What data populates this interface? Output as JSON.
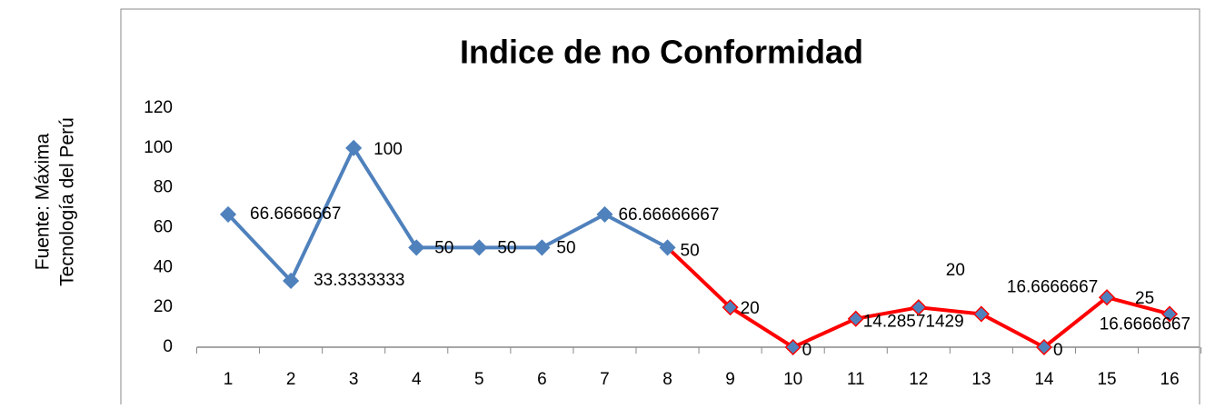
{
  "chart_data": {
    "type": "line",
    "title": "Indice de no Conformidad",
    "source": [
      "Fuente: Máxima",
      "Tecnología del Perú"
    ],
    "categories": [
      "1",
      "2",
      "3",
      "4",
      "5",
      "6",
      "7",
      "8",
      "9",
      "10",
      "11",
      "12",
      "13",
      "14",
      "15",
      "16"
    ],
    "series": [
      {
        "color": "#4f81bd",
        "marker_edge": "#4f81bd",
        "values": [
          66.6666667,
          33.3333333,
          100,
          50,
          50,
          50,
          66.66666667,
          50,
          null,
          null,
          null,
          null,
          null,
          null,
          null,
          null
        ]
      },
      {
        "color": "#ff0000",
        "marker_edge": "#ff0000",
        "values": [
          null,
          null,
          null,
          null,
          null,
          null,
          null,
          50,
          20,
          0,
          14.28571429,
          20,
          16.6666667,
          0,
          25,
          16.6666667
        ]
      }
    ],
    "ylim": [
      0,
      120
    ],
    "yticks": [
      0,
      20,
      40,
      60,
      80,
      100,
      120
    ],
    "grid": false
  }
}
